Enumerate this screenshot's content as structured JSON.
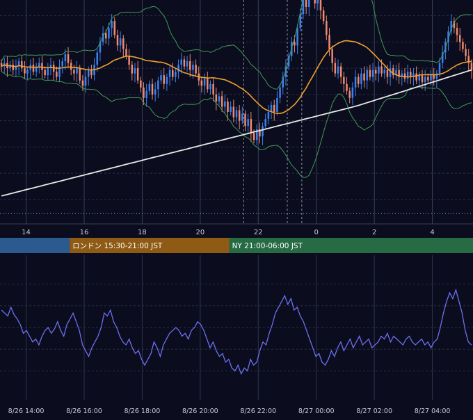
{
  "colors": {
    "background": "#0b0d1e",
    "grid": "#2a2e45",
    "candle_up": "#3b82f0",
    "candle_down": "#f08a70",
    "bollinger": "#3f9a58",
    "ma_short": "#f0a030",
    "ma_long": "#e8e8e8",
    "oscillator": "#6d6ff0",
    "tokyo": "#2a5a8e",
    "london": "#8e5a14",
    "newyork": "#266b43"
  },
  "sessions": [
    {
      "label": "",
      "color": "#2a5a8e"
    },
    {
      "label": "ロンドン 15:30-21:00 JST",
      "color": "#8e5a14"
    },
    {
      "label": "NY 21:00-06:00 JST",
      "color": "#266b43"
    }
  ],
  "chart_data": [
    {
      "type": "candlestick",
      "x_ticks": [
        "14",
        "16",
        "18",
        "20",
        "22",
        "0",
        "2",
        "4"
      ],
      "x_tick_hours": [
        14,
        16,
        18,
        20,
        22,
        24,
        26,
        28
      ],
      "xlim_hours": [
        13.1,
        29.4
      ],
      "ylim": [
        -90,
        30
      ],
      "grid": true,
      "reference_level": -88,
      "session_dividers_hours": [
        21.5,
        23.0,
        23.5
      ],
      "close": [
        -4,
        -2,
        -5,
        -3,
        -6,
        -4,
        -1,
        -5,
        -8,
        -6,
        -3,
        -7,
        -4,
        -2,
        -6,
        -9,
        -5,
        -3,
        -7,
        -10,
        -4,
        -1,
        3,
        -2,
        -6,
        -8,
        -5,
        -12,
        -15,
        -10,
        -6,
        -9,
        -3,
        4,
        10,
        15,
        12,
        18,
        22,
        14,
        8,
        12,
        6,
        2,
        -3,
        -8,
        -5,
        -12,
        -16,
        -22,
        -18,
        -14,
        -20,
        -17,
        -12,
        -9,
        -14,
        -10,
        -6,
        -10,
        -7,
        -3,
        0,
        -4,
        -1,
        -6,
        -3,
        -8,
        -12,
        -15,
        -11,
        -17,
        -14,
        -20,
        -24,
        -21,
        -27,
        -24,
        -30,
        -27,
        -33,
        -29,
        -35,
        -31,
        -38,
        -34,
        -42,
        -46,
        -40,
        -44,
        -38,
        -34,
        -30,
        -26,
        -30,
        -22,
        -16,
        -10,
        -4,
        2,
        10,
        8,
        18,
        26,
        34,
        30,
        40,
        36,
        32,
        38,
        28,
        22,
        14,
        6,
        -2,
        -8,
        -4,
        -10,
        -14,
        -18,
        -22,
        -16,
        -10,
        -14,
        -8,
        -12,
        -6,
        -10,
        -6,
        -8,
        -4,
        -8,
        -6,
        -10,
        -5,
        -9,
        -6,
        -10,
        -8,
        -11,
        -7,
        -10,
        -8,
        -12,
        -9,
        -13,
        -10,
        -12,
        -9,
        -11,
        -8,
        -2,
        4,
        10,
        16,
        22,
        18,
        14,
        10,
        6,
        2,
        -2,
        -6
      ],
      "series": [
        {
          "name": "",
          "kind": "ma_short"
        },
        {
          "name": "",
          "kind": "ma_long"
        },
        {
          "name": "",
          "kind": "bollinger"
        }
      ]
    },
    {
      "type": "line",
      "x_ticks": [
        "8/26 14:00",
        "8/26 16:00",
        "8/26 18:00",
        "8/26 20:00",
        "8/26 22:00",
        "8/27 00:00",
        "8/27 02:00",
        "8/27 04:00"
      ],
      "x_tick_hours": [
        14,
        16,
        18,
        20,
        22,
        24,
        26,
        28
      ],
      "ylim": [
        -50,
        50
      ],
      "grid": true,
      "values": [
        12,
        10,
        8,
        14,
        9,
        6,
        2,
        -4,
        -2,
        -6,
        -10,
        -8,
        -12,
        -6,
        -2,
        0,
        -4,
        -1,
        4,
        -2,
        -6,
        2,
        6,
        10,
        4,
        -2,
        -12,
        -16,
        -20,
        -14,
        -10,
        -6,
        0,
        10,
        8,
        12,
        4,
        0,
        -6,
        -10,
        -12,
        -8,
        -14,
        -18,
        -16,
        -22,
        -26,
        -22,
        -18,
        -10,
        -14,
        -20,
        -12,
        -8,
        -4,
        -2,
        0,
        -2,
        -6,
        -4,
        -8,
        -2,
        0,
        4,
        2,
        -2,
        -8,
        -14,
        -10,
        -16,
        -20,
        -18,
        -24,
        -22,
        -28,
        -30,
        -26,
        -32,
        -28,
        -30,
        -22,
        -26,
        -24,
        -16,
        -10,
        -12,
        -4,
        2,
        10,
        14,
        18,
        22,
        16,
        20,
        12,
        14,
        8,
        4,
        -2,
        -8,
        -14,
        -20,
        -18,
        -24,
        -26,
        -22,
        -16,
        -20,
        -14,
        -10,
        -16,
        -12,
        -8,
        -14,
        -10,
        -6,
        -12,
        -10,
        -8,
        -14,
        -12,
        -10,
        -6,
        -8,
        -4,
        -10,
        -6,
        -8,
        -10,
        -12,
        -8,
        -6,
        -10,
        -12,
        -10,
        -8,
        -12,
        -10,
        -14,
        -10,
        -8,
        0,
        10,
        18,
        24,
        20,
        26,
        18,
        10,
        -2,
        -10,
        -12
      ]
    }
  ]
}
